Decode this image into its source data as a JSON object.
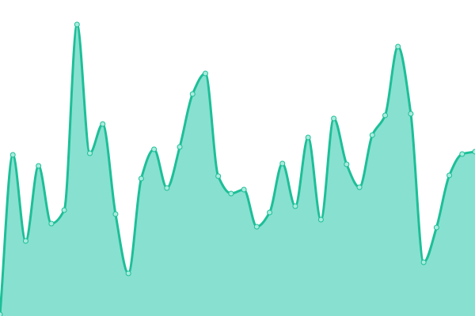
{
  "chart_data": {
    "type": "area",
    "title": "",
    "xlabel": "",
    "ylabel": "",
    "x": [
      0,
      1,
      2,
      3,
      4,
      5,
      6,
      7,
      8,
      9,
      10,
      11,
      12,
      13,
      14,
      15,
      16,
      17,
      18,
      19,
      20,
      21,
      22,
      23,
      24,
      25,
      26,
      27,
      28,
      29,
      30,
      31,
      32,
      33,
      34,
      35,
      36,
      37
    ],
    "values": [
      2,
      204,
      95,
      190,
      117,
      134,
      369,
      206,
      243,
      129,
      54,
      174,
      211,
      162,
      214,
      281,
      307,
      177,
      155,
      160,
      113,
      131,
      193,
      139,
      226,
      122,
      250,
      192,
      163,
      229,
      254,
      341,
      256,
      68,
      112,
      178,
      205,
      208
    ],
    "ylim": [
      0,
      400
    ],
    "grid": false,
    "axes_visible": false,
    "curve": "smooth-monotone",
    "markers": true,
    "colors": {
      "line": "#1dbf98",
      "fill": "#88e0d0",
      "marker_fill": "#a8ecdd",
      "marker_stroke": "#1dbf98"
    }
  }
}
